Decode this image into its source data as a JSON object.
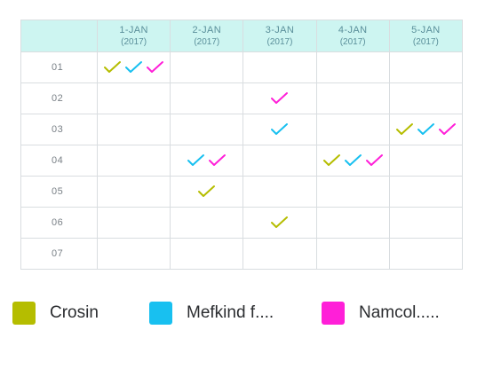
{
  "header": {
    "dates": [
      {
        "day": "1-JAN",
        "year": "(2017)"
      },
      {
        "day": "2-JAN",
        "year": "(2017)"
      },
      {
        "day": "3-JAN",
        "year": "(2017)"
      },
      {
        "day": "4-JAN",
        "year": "(2017)"
      },
      {
        "day": "5-JAN",
        "year": "(2017)"
      }
    ]
  },
  "rows": [
    {
      "label": "01",
      "cells": [
        [
          "crosin",
          "mefkind",
          "namcol"
        ],
        [],
        [],
        [],
        []
      ]
    },
    {
      "label": "02",
      "cells": [
        [],
        [],
        [
          "namcol"
        ],
        [],
        []
      ]
    },
    {
      "label": "03",
      "cells": [
        [],
        [],
        [
          "mefkind"
        ],
        [],
        [
          "crosin",
          "mefkind",
          "namcol"
        ]
      ]
    },
    {
      "label": "04",
      "cells": [
        [],
        [
          "mefkind",
          "namcol"
        ],
        [],
        [
          "crosin",
          "mefkind",
          "namcol"
        ],
        []
      ]
    },
    {
      "label": "05",
      "cells": [
        [],
        [
          "crosin"
        ],
        [],
        [],
        []
      ]
    },
    {
      "label": "06",
      "cells": [
        [],
        [],
        [
          "crosin"
        ],
        [],
        []
      ]
    },
    {
      "label": "07",
      "cells": [
        [],
        [],
        [],
        [],
        []
      ]
    }
  ],
  "legend": [
    {
      "key": "crosin",
      "label": "Crosin",
      "color": "#b5bd00"
    },
    {
      "key": "mefkind",
      "label": "Mefkind f....",
      "color": "#18c0f0"
    },
    {
      "key": "namcol",
      "label": "Namcol.....",
      "color": "#ff1fd8"
    }
  ],
  "icons": {
    "check": "checkmark-icon"
  }
}
